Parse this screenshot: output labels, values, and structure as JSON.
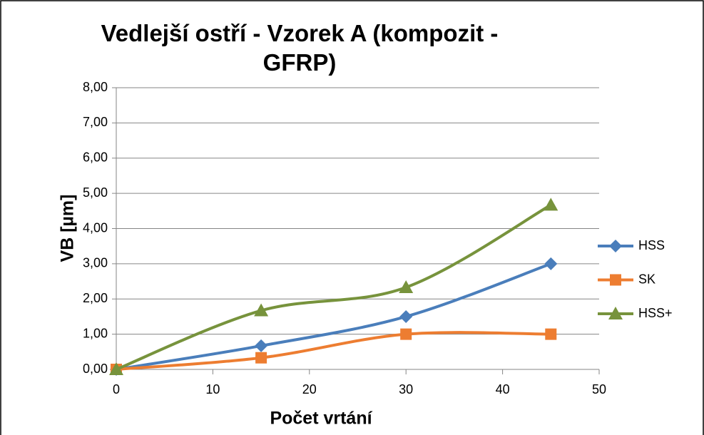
{
  "chart_data": {
    "type": "line",
    "title": "Vedlejší ostří - Vzorek A (kompozit - GFRP)",
    "x_label": "Počet vrtání",
    "y_label": "VB  [µm]",
    "x": [
      0,
      15,
      30,
      45
    ],
    "series": [
      {
        "name": "HSS",
        "color": "#4a7ebb",
        "marker": "diamond",
        "values": [
          0,
          0.67,
          1.5,
          3.0
        ]
      },
      {
        "name": "SK",
        "color": "#ed7d31",
        "marker": "square",
        "values": [
          0,
          0.33,
          1.0,
          1.0
        ]
      },
      {
        "name": "HSS+",
        "color": "#77933c",
        "marker": "triangle",
        "values": [
          0,
          1.67,
          2.33,
          4.67
        ]
      }
    ],
    "xlim": [
      0,
      50
    ],
    "xticks": [
      0,
      10,
      20,
      30,
      40,
      50
    ],
    "ylim": [
      0,
      8
    ],
    "yticks": [
      {
        "value": 0,
        "label": "0,00"
      },
      {
        "value": 1,
        "label": "1,00"
      },
      {
        "value": 2,
        "label": "2,00"
      },
      {
        "value": 3,
        "label": "3,00"
      },
      {
        "value": 4,
        "label": "4,00"
      },
      {
        "value": 5,
        "label": "5,00"
      },
      {
        "value": 6,
        "label": "6,00"
      },
      {
        "value": 7,
        "label": "7,00"
      },
      {
        "value": 8,
        "label": "8,00"
      }
    ],
    "grid": true,
    "smooth": true,
    "legend": "right"
  }
}
